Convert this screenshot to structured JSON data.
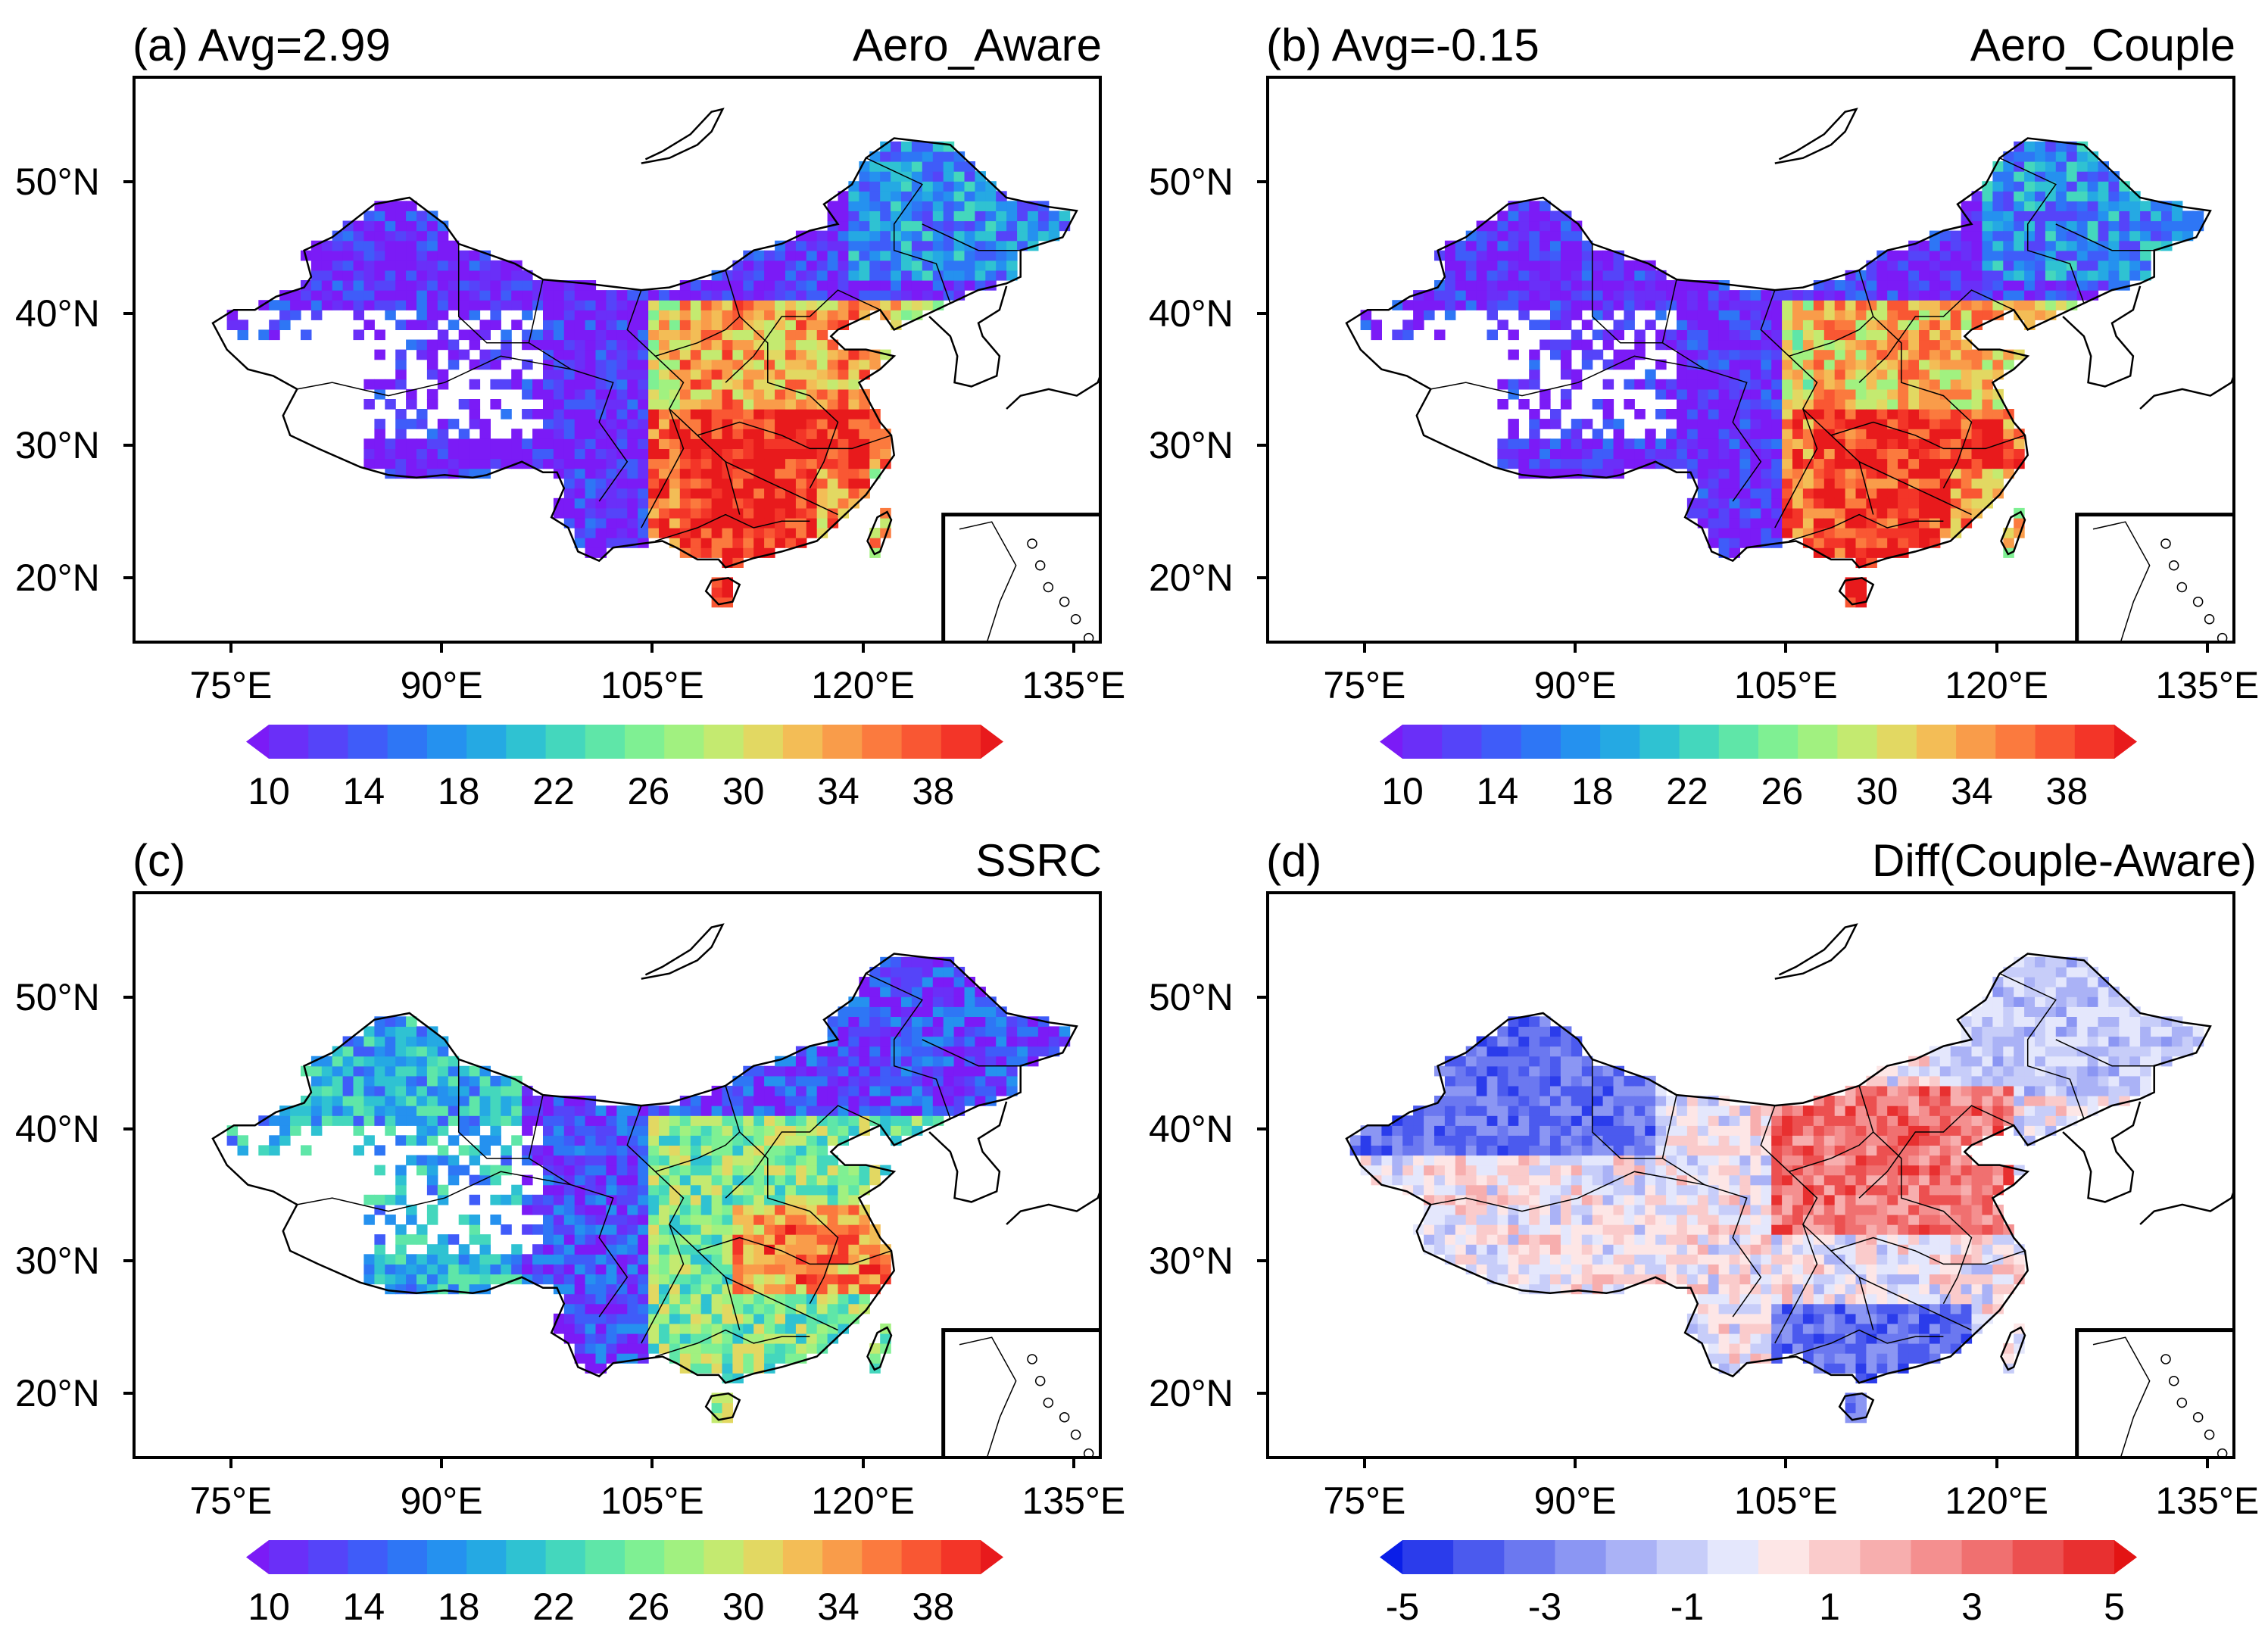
{
  "figure": {
    "lat_ticks": [
      "50°N",
      "40°N",
      "30°N",
      "20°N"
    ],
    "lon_ticks": [
      "75°E",
      "90°E",
      "105°E",
      "120°E",
      "135°E"
    ]
  },
  "panels": [
    {
      "id": "a",
      "tag_text": "(a) Avg=2.99",
      "title": "Aero_Aware",
      "colorbar": "rainbow",
      "field": "aware"
    },
    {
      "id": "b",
      "tag_text": "(b) Avg=-0.15",
      "title": "Aero_Couple",
      "colorbar": "rainbow",
      "field": "couple"
    },
    {
      "id": "c",
      "tag_text": "(c)",
      "title": "SSRC",
      "colorbar": "rainbow",
      "field": "ssrc"
    },
    {
      "id": "d",
      "tag_text": "(d)",
      "title": "Diff(Couple-Aware)",
      "colorbar": "diverging",
      "field": "diff"
    }
  ],
  "colorbars": {
    "rainbow": {
      "tick_labels": [
        "10",
        "14",
        "18",
        "22",
        "26",
        "30",
        "34",
        "38"
      ],
      "min": 10,
      "max": 40,
      "colors": [
        "#7b1bf6",
        "#6a2ff8",
        "#5544f9",
        "#3f5cf9",
        "#2e76f5",
        "#2591ef",
        "#25a9e3",
        "#2fc2d2",
        "#44d7bd",
        "#5fe6a8",
        "#7ff093",
        "#a1f180",
        "#c4ea70",
        "#e2d862",
        "#f3bd56",
        "#f99c4a",
        "#fb7a3e",
        "#f95733",
        "#f33528",
        "#e81a1c"
      ]
    },
    "diverging": {
      "tick_labels": [
        "-5",
        "-3",
        "-1",
        "1",
        "3",
        "5"
      ],
      "min": -5,
      "max": 5,
      "colors": [
        "#0a1ee8",
        "#2b3ceb",
        "#4b5aee",
        "#6b78f0",
        "#8b96f3",
        "#aab2f6",
        "#c7cdf9",
        "#e4e7fc",
        "#fde6e6",
        "#facbcb",
        "#f7aeae",
        "#f48f8f",
        "#f07070",
        "#ec5050",
        "#e83030",
        "#e31414"
      ]
    },
    "region_markers": {
      "north_china_plain": "105°E-120°E, 30°N-40°N",
      "south_china": "105°E-120°E, 20°N-30°N"
    }
  }
}
